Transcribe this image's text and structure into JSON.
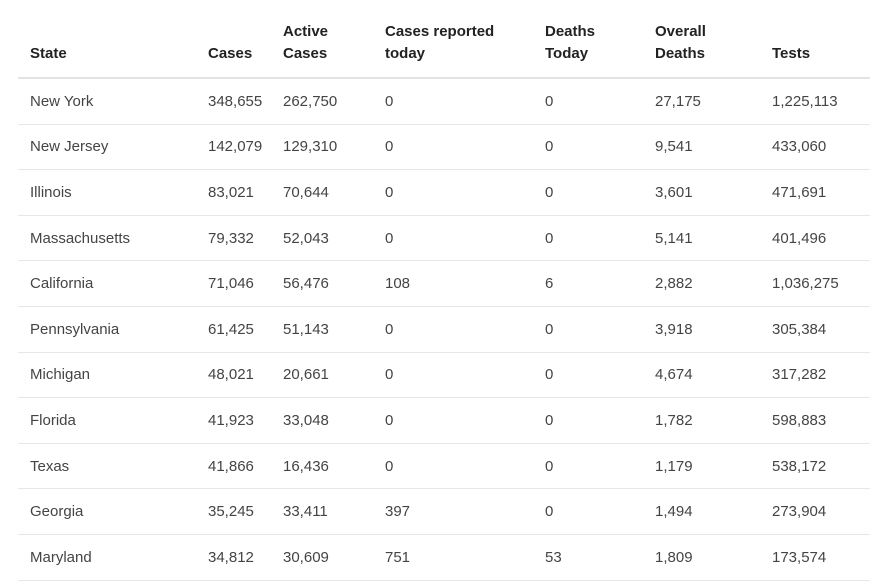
{
  "table": {
    "headers": {
      "state": "State",
      "cases": "Cases",
      "active_cases_1": "Active",
      "active_cases_2": "Cases",
      "reported_today_1": "Cases reported",
      "reported_today_2": "today",
      "deaths_today_1": "Deaths",
      "deaths_today_2": "Today",
      "overall_deaths_1": "Overall",
      "overall_deaths_2": "Deaths",
      "tests": "Tests"
    },
    "rows": [
      {
        "state": "New York",
        "cases": "348,655",
        "active": "262,750",
        "reported_today": "0",
        "deaths_today": "0",
        "overall_deaths": "27,175",
        "tests": "1,225,113"
      },
      {
        "state": "New Jersey",
        "cases": "142,079",
        "active": "129,310",
        "reported_today": "0",
        "deaths_today": "0",
        "overall_deaths": "9,541",
        "tests": "433,060"
      },
      {
        "state": "Illinois",
        "cases": "83,021",
        "active": "70,644",
        "reported_today": "0",
        "deaths_today": "0",
        "overall_deaths": "3,601",
        "tests": "471,691"
      },
      {
        "state": "Massachusetts",
        "cases": "79,332",
        "active": "52,043",
        "reported_today": "0",
        "deaths_today": "0",
        "overall_deaths": "5,141",
        "tests": "401,496"
      },
      {
        "state": "California",
        "cases": "71,046",
        "active": "56,476",
        "reported_today": "108",
        "deaths_today": "6",
        "overall_deaths": "2,882",
        "tests": "1,036,275"
      },
      {
        "state": "Pennsylvania",
        "cases": "61,425",
        "active": "51,143",
        "reported_today": "0",
        "deaths_today": "0",
        "overall_deaths": "3,918",
        "tests": "305,384"
      },
      {
        "state": "Michigan",
        "cases": "48,021",
        "active": "20,661",
        "reported_today": "0",
        "deaths_today": "0",
        "overall_deaths": "4,674",
        "tests": "317,282"
      },
      {
        "state": "Florida",
        "cases": "41,923",
        "active": "33,048",
        "reported_today": "0",
        "deaths_today": "0",
        "overall_deaths": "1,782",
        "tests": "598,883"
      },
      {
        "state": "Texas",
        "cases": "41,866",
        "active": "16,436",
        "reported_today": "0",
        "deaths_today": "0",
        "overall_deaths": "1,179",
        "tests": "538,172"
      },
      {
        "state": "Georgia",
        "cases": "35,245",
        "active": "33,411",
        "reported_today": "397",
        "deaths_today": "0",
        "overall_deaths": "1,494",
        "tests": "273,904"
      },
      {
        "state": "Maryland",
        "cases": "34,812",
        "active": "30,609",
        "reported_today": "751",
        "deaths_today": "53",
        "overall_deaths": "1,809",
        "tests": "173,574"
      }
    ]
  },
  "colors": {
    "header_text": "#222222",
    "cell_text": "#444444",
    "row_border": "#e6e6e6",
    "cutoff_column": "#d6a21e"
  }
}
